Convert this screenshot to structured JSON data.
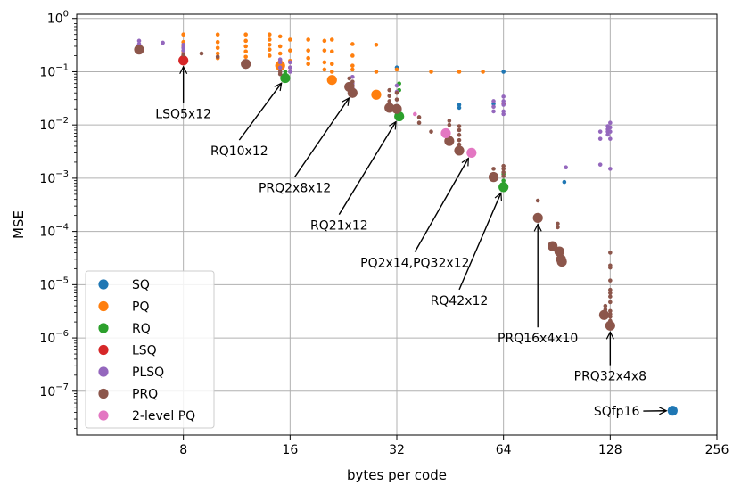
{
  "chart_data": {
    "type": "scatter",
    "xlabel": "bytes per code",
    "ylabel": "MSE",
    "xscale": "log2",
    "yscale": "log10",
    "xlim": [
      4,
      256
    ],
    "ylim": [
      1.5e-08,
      1.2
    ],
    "xticks": [
      8,
      16,
      32,
      64,
      128,
      256
    ],
    "xtick_labels": [
      "8",
      "16",
      "32",
      "64",
      "128",
      "256"
    ],
    "yticks": [
      1e-07,
      1e-06,
      1e-05,
      0.0001,
      0.001,
      0.01,
      0.1,
      1
    ],
    "ytick_labels": [
      {
        "base": "10",
        "exp": "−7"
      },
      {
        "base": "10",
        "exp": "−6"
      },
      {
        "base": "10",
        "exp": "−5"
      },
      {
        "base": "10",
        "exp": "−4"
      },
      {
        "base": "10",
        "exp": "−3"
      },
      {
        "base": "10",
        "exp": "−2"
      },
      {
        "base": "10",
        "exp": "−1"
      },
      {
        "base": "10",
        "exp": "0"
      }
    ],
    "grid": true,
    "legend_position": "lower-left",
    "series": [
      {
        "name": "SQ",
        "color": "#1f77b4",
        "small": [
          [
            32,
            0.12
          ],
          [
            48,
            0.024
          ],
          [
            48,
            0.021
          ],
          [
            64,
            0.1
          ],
          [
            60,
            0.025
          ],
          [
            95,
            0.00085
          ]
        ],
        "big": [
          [
            192,
            4.3e-08
          ]
        ]
      },
      {
        "name": "PQ",
        "color": "#ff7f0e",
        "small": [
          [
            8,
            0.5
          ],
          [
            8,
            0.36
          ],
          [
            8,
            0.3
          ],
          [
            8,
            0.24
          ],
          [
            8,
            0.2
          ],
          [
            8,
            0.17
          ],
          [
            10,
            0.5
          ],
          [
            10,
            0.36
          ],
          [
            10,
            0.28
          ],
          [
            10,
            0.22
          ],
          [
            10,
            0.18
          ],
          [
            12,
            0.5
          ],
          [
            12,
            0.38
          ],
          [
            12,
            0.3
          ],
          [
            12,
            0.24
          ],
          [
            12,
            0.19
          ],
          [
            14,
            0.5
          ],
          [
            14,
            0.4
          ],
          [
            14,
            0.32
          ],
          [
            14,
            0.26
          ],
          [
            14,
            0.2
          ],
          [
            15,
            0.46
          ],
          [
            15,
            0.3
          ],
          [
            15,
            0.22
          ],
          [
            15,
            0.16
          ],
          [
            16,
            0.4
          ],
          [
            16,
            0.25
          ],
          [
            16,
            0.16
          ],
          [
            16,
            0.12
          ],
          [
            18,
            0.4
          ],
          [
            18,
            0.25
          ],
          [
            18,
            0.18
          ],
          [
            18,
            0.14
          ],
          [
            20,
            0.38
          ],
          [
            20,
            0.25
          ],
          [
            20,
            0.15
          ],
          [
            20,
            0.11
          ],
          [
            21,
            0.4
          ],
          [
            21,
            0.24
          ],
          [
            21,
            0.14
          ],
          [
            21,
            0.1
          ],
          [
            24,
            0.33
          ],
          [
            24,
            0.2
          ],
          [
            24,
            0.13
          ],
          [
            24,
            0.11
          ],
          [
            28,
            0.32
          ],
          [
            28,
            0.1
          ],
          [
            32,
            0.11
          ],
          [
            40,
            0.1
          ],
          [
            48,
            0.1
          ],
          [
            56,
            0.1
          ]
        ],
        "big": [
          [
            15,
            0.13
          ],
          [
            21,
            0.07
          ],
          [
            28,
            0.037
          ]
        ]
      },
      {
        "name": "RQ",
        "color": "#2ca02c",
        "small": [
          [
            15.5,
            0.1
          ],
          [
            15.5,
            0.09
          ],
          [
            32.5,
            0.06
          ],
          [
            32.5,
            0.045
          ],
          [
            64,
            0.0012
          ],
          [
            64,
            0.0009
          ]
        ],
        "big": [
          [
            15.5,
            0.076
          ],
          [
            32.5,
            0.0145
          ],
          [
            64,
            0.00068
          ]
        ]
      },
      {
        "name": "LSQ",
        "color": "#d62728",
        "small": [
          [
            8,
            0.2
          ],
          [
            64,
            0.025
          ]
        ],
        "big": [
          [
            8,
            0.163
          ]
        ]
      },
      {
        "name": "PLSQ",
        "color": "#9467bd",
        "small": [
          [
            6,
            0.38
          ],
          [
            6,
            0.33
          ],
          [
            6,
            0.3
          ],
          [
            7,
            0.35
          ],
          [
            8,
            0.32
          ],
          [
            8,
            0.28
          ],
          [
            8,
            0.25
          ],
          [
            15,
            0.17
          ],
          [
            15,
            0.15
          ],
          [
            15,
            0.12
          ],
          [
            15,
            0.1
          ],
          [
            16,
            0.15
          ],
          [
            16,
            0.12
          ],
          [
            16,
            0.1
          ],
          [
            24,
            0.08
          ],
          [
            24,
            0.06
          ],
          [
            24,
            0.05
          ],
          [
            32,
            0.055
          ],
          [
            32,
            0.042
          ],
          [
            60,
            0.028
          ],
          [
            60,
            0.022
          ],
          [
            60,
            0.018
          ],
          [
            64,
            0.034
          ],
          [
            64,
            0.028
          ],
          [
            64,
            0.024
          ],
          [
            64,
            0.018
          ],
          [
            64,
            0.016
          ],
          [
            96,
            0.0016
          ],
          [
            120,
            0.0075
          ],
          [
            120,
            0.0055
          ],
          [
            120,
            0.0018
          ],
          [
            126,
            0.0095
          ],
          [
            126,
            0.0083
          ],
          [
            126,
            0.0075
          ],
          [
            126,
            0.0066
          ],
          [
            128,
            0.011
          ],
          [
            128,
            0.009
          ],
          [
            128,
            0.0075
          ],
          [
            128,
            0.0055
          ],
          [
            128,
            0.0015
          ]
        ],
        "big": []
      },
      {
        "name": "PRQ",
        "color": "#8c564b",
        "small": [
          [
            8,
            0.21
          ],
          [
            9,
            0.22
          ],
          [
            10,
            0.19
          ],
          [
            15,
            0.1
          ],
          [
            15,
            0.09
          ],
          [
            23.5,
            0.075
          ],
          [
            24,
            0.065
          ],
          [
            24,
            0.055
          ],
          [
            30.5,
            0.045
          ],
          [
            30.5,
            0.035
          ],
          [
            30.5,
            0.028
          ],
          [
            32,
            0.04
          ],
          [
            32,
            0.03
          ],
          [
            32,
            0.022
          ],
          [
            37,
            0.014
          ],
          [
            37,
            0.011
          ],
          [
            40,
            0.0075
          ],
          [
            45,
            0.012
          ],
          [
            45,
            0.01
          ],
          [
            48,
            0.0095
          ],
          [
            48,
            0.008
          ],
          [
            48,
            0.0065
          ],
          [
            48,
            0.0052
          ],
          [
            48,
            0.0043
          ],
          [
            60,
            0.0015
          ],
          [
            60,
            0.0012
          ],
          [
            64,
            0.0017
          ],
          [
            64,
            0.0015
          ],
          [
            64,
            0.0013
          ],
          [
            64,
            0.0011
          ],
          [
            80,
            0.00038
          ],
          [
            91,
            0.00014
          ],
          [
            91,
            0.00012
          ],
          [
            124,
            4e-06
          ],
          [
            124,
            3.4e-06
          ],
          [
            128,
            4e-05
          ],
          [
            128,
            2.3e-05
          ],
          [
            128,
            2.1e-05
          ],
          [
            128,
            1.2e-05
          ],
          [
            128,
            8e-06
          ],
          [
            128,
            7e-06
          ],
          [
            128,
            6e-06
          ],
          [
            128,
            4.7e-06
          ],
          [
            128,
            3.2e-06
          ],
          [
            128,
            2.8e-06
          ],
          [
            128,
            2.5e-06
          ],
          [
            128,
            2.1e-06
          ]
        ],
        "big": [
          [
            6,
            0.26
          ],
          [
            12,
            0.14
          ],
          [
            23.5,
            0.052
          ],
          [
            24,
            0.04
          ],
          [
            30.5,
            0.021
          ],
          [
            32,
            0.02
          ],
          [
            45,
            0.005
          ],
          [
            48,
            0.0033
          ],
          [
            60,
            0.00105
          ],
          [
            80,
            0.00018
          ],
          [
            88,
            5.3e-05
          ],
          [
            92,
            4.2e-05
          ],
          [
            93,
            3e-05
          ],
          [
            93.5,
            2.7e-05
          ],
          [
            123,
            2.7e-06
          ],
          [
            128,
            1.7e-06
          ]
        ]
      },
      {
        "name": "2-level PQ",
        "color": "#e377c2",
        "small": [
          [
            36,
            0.016
          ]
        ],
        "big": [
          [
            44,
            0.007
          ],
          [
            52,
            0.003
          ]
        ]
      }
    ],
    "annotations": [
      {
        "text": "LSQ5x12",
        "point": [
          8,
          0.163
        ],
        "text_x": 8,
        "text_y": 0.0135
      },
      {
        "text": "RQ10x12",
        "point": [
          15.5,
          0.076
        ],
        "text_x": 11.5,
        "text_y": 0.0027
      },
      {
        "text": "PRQ2x8x12",
        "point": [
          24,
          0.04
        ],
        "text_x": 16.5,
        "text_y": 0.00055
      },
      {
        "text": "RQ21x12",
        "point": [
          32.5,
          0.0145
        ],
        "text_x": 22,
        "text_y": 0.000108
      },
      {
        "text": "PQ2x14,PQ32x12",
        "point": [
          52,
          0.003
        ],
        "text_x": 36,
        "text_y": 2.15e-05
      },
      {
        "text": "RQ42x12",
        "point": [
          64,
          0.00068
        ],
        "text_x": 48,
        "text_y": 4.2e-06
      },
      {
        "text": "PRQ16x4x10",
        "point": [
          80,
          0.00018
        ],
        "text_x": 80,
        "text_y": 8.2e-07
      },
      {
        "text": "PRQ32x4x8",
        "point": [
          128,
          1.7e-06
        ],
        "text_x": 128,
        "text_y": 1.6e-07
      },
      {
        "text": "SQfp16",
        "point": [
          192,
          4.3e-08
        ],
        "text_x": 155,
        "text_y": 3.5e-08,
        "anchor": "end"
      }
    ]
  }
}
